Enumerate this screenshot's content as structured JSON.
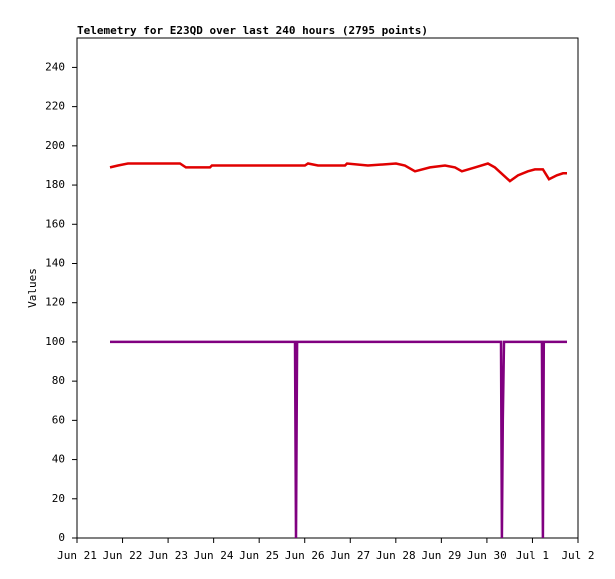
{
  "chart_data": {
    "type": "line",
    "title": "Telemetry for E23QD over last 240 hours (2795 points)",
    "y_label": "Values",
    "xlim": [
      0,
      264
    ],
    "xticks": [
      {
        "value": 0,
        "label": "Jun 21"
      },
      {
        "value": 24,
        "label": "Jun 22"
      },
      {
        "value": 48,
        "label": "Jun 23"
      },
      {
        "value": 72,
        "label": "Jun 24"
      },
      {
        "value": 96,
        "label": "Jun 25"
      },
      {
        "value": 120,
        "label": "Jun 26"
      },
      {
        "value": 144,
        "label": "Jun 27"
      },
      {
        "value": 168,
        "label": "Jun 28"
      },
      {
        "value": 192,
        "label": "Jun 29"
      },
      {
        "value": 216,
        "label": "Jun 30"
      },
      {
        "value": 240,
        "label": "Jul 1"
      },
      {
        "value": 264,
        "label": "Jul 2"
      }
    ],
    "ylim": [
      0,
      255
    ],
    "yticks": [
      0,
      20,
      40,
      60,
      80,
      100,
      120,
      140,
      160,
      180,
      200,
      220,
      240
    ],
    "grid": false,
    "series": [
      {
        "color": "#e00000",
        "x": [
          17.4,
          21.6,
          26.9,
          54.3,
          57.4,
          70.1,
          71.1,
          120.1,
          121.7,
          127.0,
          141.2,
          142.3,
          153.3,
          168.1,
          172.8,
          178.1,
          186.0,
          193.9,
          199.2,
          202.8,
          209.7,
          216.5,
          220.2,
          228.1,
          232.4,
          237.6,
          241.3,
          245.5,
          248.7,
          252.9,
          256.1,
          258.2
        ],
        "values": [
          189,
          190,
          191,
          191,
          189,
          189,
          190,
          190,
          191,
          190,
          190,
          191,
          190,
          191,
          190,
          187,
          189,
          190,
          189,
          187,
          189,
          191,
          189,
          182,
          185,
          187,
          188,
          188,
          183,
          185,
          186,
          186
        ]
      },
      {
        "color": "#800080",
        "x": [
          17.4,
          114.9,
          115.4,
          116.0,
          223.4,
          223.9,
          224.4,
          225.0,
          245.0,
          245.5,
          246.0,
          258.2
        ],
        "values": [
          100,
          100,
          0,
          100,
          100,
          0,
          60,
          100,
          100,
          0,
          100,
          100
        ]
      }
    ]
  }
}
